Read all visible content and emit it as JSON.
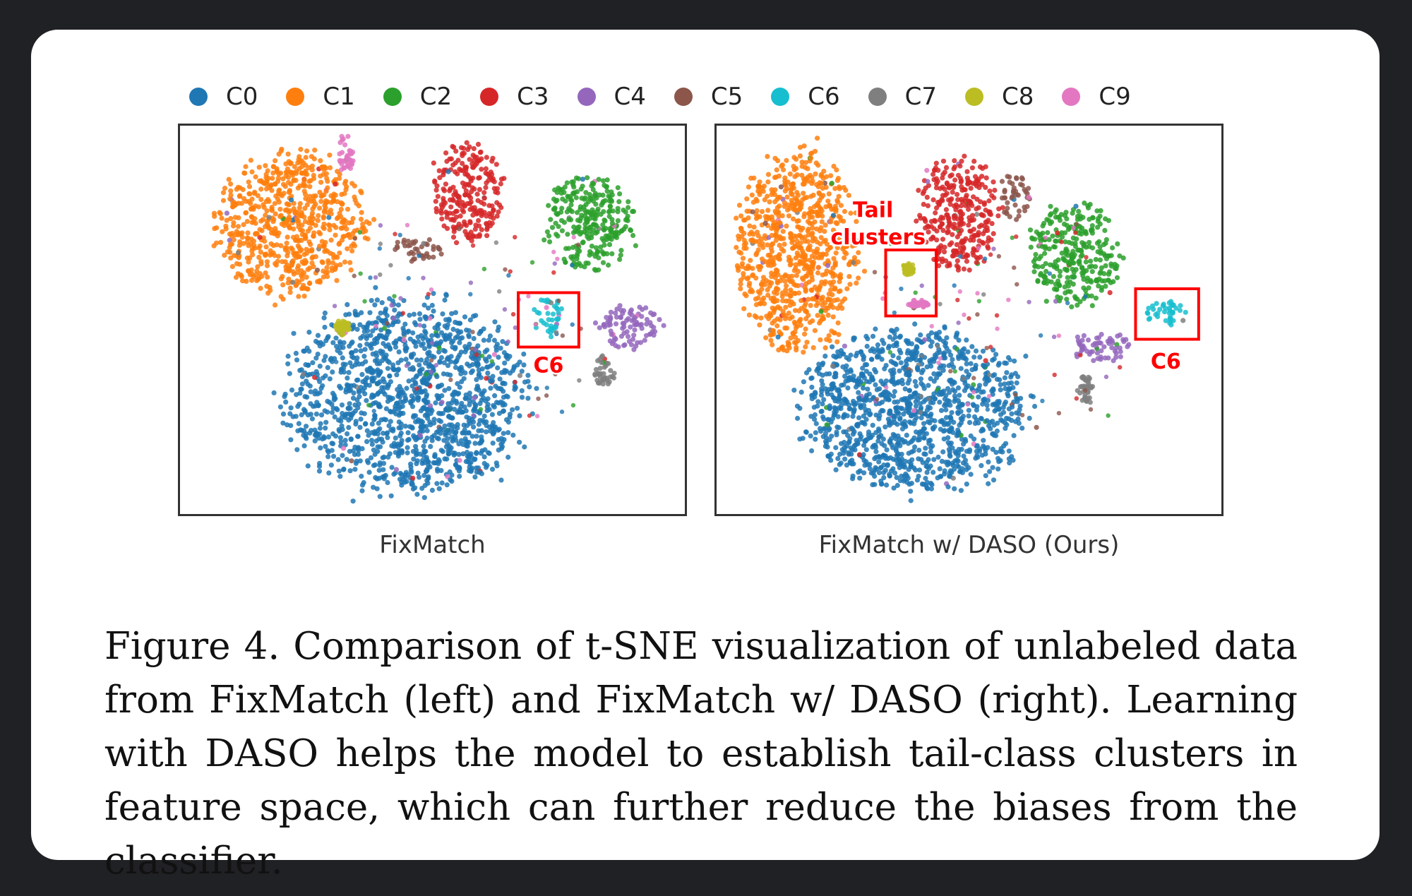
{
  "legend": [
    {
      "label": "C0",
      "color": "#1f77b4"
    },
    {
      "label": "C1",
      "color": "#ff7f0e"
    },
    {
      "label": "C2",
      "color": "#2ca02c"
    },
    {
      "label": "C3",
      "color": "#d62728"
    },
    {
      "label": "C4",
      "color": "#9467bd"
    },
    {
      "label": "C5",
      "color": "#8c564b"
    },
    {
      "label": "C6",
      "color": "#17becf"
    },
    {
      "label": "C7",
      "color": "#7f7f7f"
    },
    {
      "label": "C8",
      "color": "#bcbd22"
    },
    {
      "label": "C9",
      "color": "#e377c2"
    }
  ],
  "chart_data": [
    {
      "type": "scatter",
      "title": "FixMatch",
      "xlabel": "",
      "ylabel": "",
      "grid": false,
      "legend_position": "top",
      "clusters": [
        {
          "class": "C1",
          "cx": 0.22,
          "cy": 0.25,
          "rx": 0.15,
          "ry": 0.18
        },
        {
          "class": "C3",
          "cx": 0.57,
          "cy": 0.17,
          "rx": 0.07,
          "ry": 0.13
        },
        {
          "class": "C2",
          "cx": 0.81,
          "cy": 0.25,
          "rx": 0.09,
          "ry": 0.12
        },
        {
          "class": "C5",
          "cx": 0.47,
          "cy": 0.32,
          "rx": 0.05,
          "ry": 0.03
        },
        {
          "class": "C0",
          "cx": 0.45,
          "cy": 0.7,
          "rx": 0.24,
          "ry": 0.24
        },
        {
          "class": "C6",
          "cx": 0.73,
          "cy": 0.49,
          "rx": 0.03,
          "ry": 0.05
        },
        {
          "class": "C4",
          "cx": 0.89,
          "cy": 0.52,
          "rx": 0.06,
          "ry": 0.06
        },
        {
          "class": "C7",
          "cx": 0.84,
          "cy": 0.63,
          "rx": 0.02,
          "ry": 0.04
        },
        {
          "class": "C8",
          "cx": 0.32,
          "cy": 0.52,
          "rx": 0.015,
          "ry": 0.02
        },
        {
          "class": "C9",
          "cx": 0.33,
          "cy": 0.08,
          "rx": 0.015,
          "ry": 0.06
        }
      ],
      "annotations": [
        {
          "text": "C6",
          "box": [
            0.67,
            0.43,
            0.79,
            0.57
          ],
          "label_pos": [
            0.73,
            0.62
          ]
        }
      ]
    },
    {
      "type": "scatter",
      "title": "FixMatch w/ DASO (Ours)",
      "xlabel": "",
      "ylabel": "",
      "grid": false,
      "legend_position": "top",
      "clusters": [
        {
          "class": "C1",
          "cx": 0.16,
          "cy": 0.32,
          "rx": 0.12,
          "ry": 0.26
        },
        {
          "class": "C3",
          "cx": 0.48,
          "cy": 0.23,
          "rx": 0.08,
          "ry": 0.15
        },
        {
          "class": "C5",
          "cx": 0.59,
          "cy": 0.18,
          "rx": 0.03,
          "ry": 0.06
        },
        {
          "class": "C2",
          "cx": 0.71,
          "cy": 0.33,
          "rx": 0.09,
          "ry": 0.13
        },
        {
          "class": "C0",
          "cx": 0.39,
          "cy": 0.73,
          "rx": 0.22,
          "ry": 0.21
        },
        {
          "class": "C8",
          "cx": 0.38,
          "cy": 0.37,
          "rx": 0.012,
          "ry": 0.015
        },
        {
          "class": "C9",
          "cx": 0.4,
          "cy": 0.46,
          "rx": 0.02,
          "ry": 0.012
        },
        {
          "class": "C6",
          "cx": 0.89,
          "cy": 0.48,
          "rx": 0.04,
          "ry": 0.03
        },
        {
          "class": "C4",
          "cx": 0.76,
          "cy": 0.57,
          "rx": 0.06,
          "ry": 0.04
        },
        {
          "class": "C7",
          "cx": 0.73,
          "cy": 0.68,
          "rx": 0.015,
          "ry": 0.04
        }
      ],
      "annotations": [
        {
          "text": "Tail",
          "box": null,
          "label_pos": [
            0.31,
            0.22
          ]
        },
        {
          "text": "clusters",
          "box": [
            0.335,
            0.32,
            0.435,
            0.49
          ],
          "label_pos": [
            0.32,
            0.29
          ]
        },
        {
          "text": "C6",
          "box": [
            0.83,
            0.42,
            0.955,
            0.55
          ],
          "label_pos": [
            0.89,
            0.61
          ]
        }
      ]
    }
  ],
  "caption": "Figure 4. Comparison of t-SNE visualization of unlabeled data from FixMatch (left) and FixMatch w/ DASO (right). Learning with DASO helps the model to establish tail-class clusters in feature space, which can further reduce the biases from the classifier."
}
